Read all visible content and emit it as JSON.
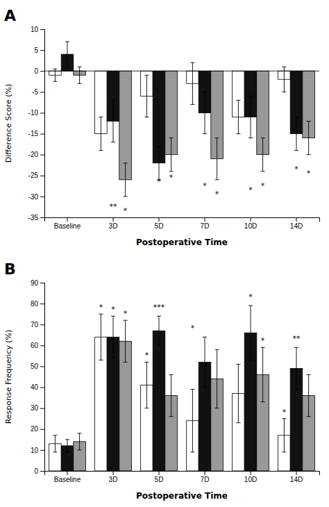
{
  "chart_data": [
    {
      "type": "bar",
      "title": "A",
      "xlabel": "Postoperative Time",
      "ylabel": "Difference Score (%)",
      "categories": [
        "Baseline",
        "3D",
        "5D",
        "7D",
        "10D",
        "14D"
      ],
      "ylim": [
        -35,
        10
      ],
      "yticks": [
        -35,
        -30,
        -25,
        -20,
        -15,
        -10,
        -5,
        0,
        5,
        10
      ],
      "series": [
        {
          "color": "#ffffff",
          "values": [
            -1,
            -15,
            -6,
            -3,
            -11,
            -2
          ],
          "errors": [
            1.5,
            4,
            5,
            5,
            4,
            3
          ]
        },
        {
          "color": "#111111",
          "values": [
            4,
            -12,
            -22,
            -10,
            -11,
            -15
          ],
          "errors": [
            3,
            5,
            4,
            5,
            5,
            4
          ]
        },
        {
          "color": "#999999",
          "values": [
            -1,
            -26,
            -20,
            -21,
            -20,
            -16
          ],
          "errors": [
            2,
            4,
            4,
            5,
            4,
            4
          ]
        }
      ],
      "annotations": [
        {
          "text": "**",
          "x": "3D",
          "series": 1,
          "y": -33
        },
        {
          "text": "*",
          "x": "3D",
          "series": 2,
          "y": -34
        },
        {
          "text": "*",
          "x": "5D",
          "series": 1,
          "y": -27
        },
        {
          "text": "*",
          "x": "5D",
          "series": 2,
          "y": -26
        },
        {
          "text": "*",
          "x": "7D",
          "series": 1,
          "y": -28
        },
        {
          "text": "*",
          "x": "7D",
          "series": 2,
          "y": -30
        },
        {
          "text": "*",
          "x": "10D",
          "series": 1,
          "y": -29
        },
        {
          "text": "*",
          "x": "10D",
          "series": 2,
          "y": -28
        },
        {
          "text": "*",
          "x": "14D",
          "series": 1,
          "y": -24
        },
        {
          "text": "*",
          "x": "14D",
          "series": 2,
          "y": -25
        }
      ]
    },
    {
      "type": "bar",
      "title": "B",
      "xlabel": "Postoperative Time",
      "ylabel": "Response Frequency (%)",
      "categories": [
        "Baseline",
        "3D",
        "5D",
        "7D",
        "10D",
        "14D"
      ],
      "ylim": [
        0,
        90
      ],
      "yticks": [
        0,
        10,
        20,
        30,
        40,
        50,
        60,
        70,
        80,
        90
      ],
      "series": [
        {
          "color": "#ffffff",
          "values": [
            13,
            64,
            41,
            24,
            37,
            17
          ],
          "errors": [
            4,
            11,
            11,
            15,
            14,
            8
          ]
        },
        {
          "color": "#111111",
          "values": [
            12,
            64,
            67,
            52,
            66,
            49
          ],
          "errors": [
            3,
            10,
            7,
            12,
            13,
            10
          ]
        },
        {
          "color": "#999999",
          "values": [
            14,
            62,
            36,
            44,
            46,
            36
          ],
          "errors": [
            4,
            10,
            10,
            14,
            13,
            10
          ]
        }
      ],
      "annotations": [
        {
          "text": "*",
          "x": "3D",
          "series": 0,
          "y": 77
        },
        {
          "text": "*",
          "x": "3D",
          "series": 1,
          "y": 76
        },
        {
          "text": "*",
          "x": "3D",
          "series": 2,
          "y": 74
        },
        {
          "text": "*",
          "x": "5D",
          "series": 0,
          "y": 54
        },
        {
          "text": "***",
          "x": "5D",
          "series": 1,
          "y": 77
        },
        {
          "text": "*",
          "x": "7D",
          "series": 0,
          "y": 67
        },
        {
          "text": "*",
          "x": "10D",
          "series": 1,
          "y": 82
        },
        {
          "text": "*",
          "x": "10D",
          "series": 2,
          "y": 61
        },
        {
          "text": "*",
          "x": "14D",
          "series": 0,
          "y": 27
        },
        {
          "text": "**",
          "x": "14D",
          "series": 1,
          "y": 62
        }
      ]
    }
  ]
}
